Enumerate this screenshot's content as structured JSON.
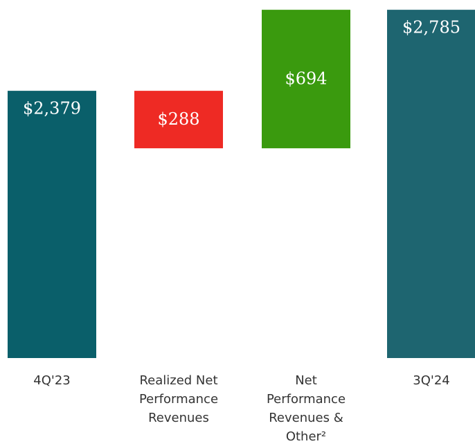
{
  "chart_data": {
    "type": "waterfall",
    "categories": [
      "4Q'23",
      "Realized Net Performance Revenues",
      "Net Performance Revenues & Other²",
      "3Q'24"
    ],
    "values": [
      2379,
      -288,
      694,
      2785
    ],
    "value_labels": [
      "$2,379",
      "$288",
      "$694",
      "$2,785"
    ],
    "measure": [
      "total",
      "relative",
      "relative",
      "total"
    ],
    "colors": [
      "#0a5f6a",
      "#ee2a24",
      "#3a9a0e",
      "#1e6570"
    ],
    "ylim": [
      1040,
      2834
    ]
  }
}
